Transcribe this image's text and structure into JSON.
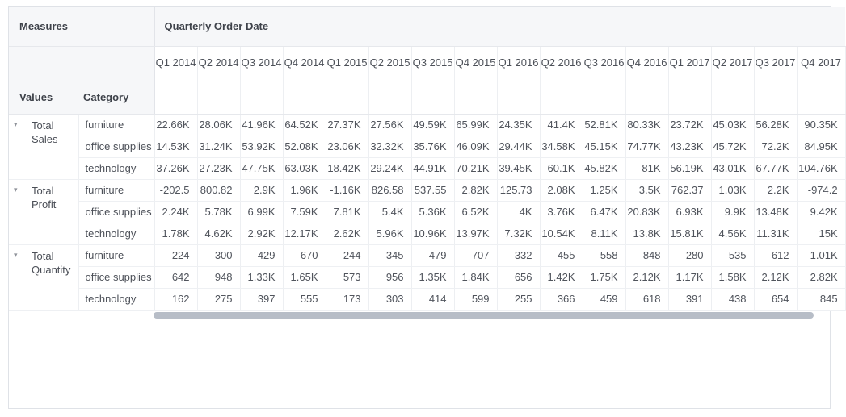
{
  "colors": {
    "header_bg": "#f6f7f9",
    "border": "#e6e8ec",
    "grid_line": "#edeff2",
    "text_header": "#3e424a",
    "text_data": "#50545c",
    "scrollbar_thumb": "#b7bdc7"
  },
  "icons": {
    "caret": "▾"
  },
  "table": {
    "corner_title": "Measures",
    "column_band_title": "Quarterly Order Date",
    "values_header": "Values",
    "category_header": "Category",
    "quarters": [
      "Q1 2014",
      "Q2 2014",
      "Q3 2014",
      "Q4 2014",
      "Q1 2015",
      "Q2 2015",
      "Q3 2015",
      "Q4 2015",
      "Q1 2016",
      "Q2 2016",
      "Q3 2016",
      "Q4 2016",
      "Q1 2017",
      "Q2 2017",
      "Q3 2017",
      "Q4 2017"
    ],
    "measures": [
      {
        "label": "Total Sales",
        "rows": [
          {
            "category": "furniture",
            "values": [
              "22.66K",
              "28.06K",
              "41.96K",
              "64.52K",
              "27.37K",
              "27.56K",
              "49.59K",
              "65.99K",
              "24.35K",
              "41.4K",
              "52.81K",
              "80.33K",
              "23.72K",
              "45.03K",
              "56.28K",
              "90.35K"
            ]
          },
          {
            "category": "office supplies",
            "values": [
              "14.53K",
              "31.24K",
              "53.92K",
              "52.08K",
              "23.06K",
              "32.32K",
              "35.76K",
              "46.09K",
              "29.44K",
              "34.58K",
              "45.15K",
              "74.77K",
              "43.23K",
              "45.72K",
              "72.2K",
              "84.95K"
            ]
          },
          {
            "category": "technology",
            "values": [
              "37.26K",
              "27.23K",
              "47.75K",
              "63.03K",
              "18.42K",
              "29.24K",
              "44.91K",
              "70.21K",
              "39.45K",
              "60.1K",
              "45.82K",
              "81K",
              "56.19K",
              "43.01K",
              "67.77K",
              "104.76K"
            ]
          }
        ]
      },
      {
        "label": "Total Profit",
        "rows": [
          {
            "category": "furniture",
            "values": [
              "-202.5",
              "800.82",
              "2.9K",
              "1.96K",
              "-1.16K",
              "826.58",
              "537.55",
              "2.82K",
              "125.73",
              "2.08K",
              "1.25K",
              "3.5K",
              "762.37",
              "1.03K",
              "2.2K",
              "-974.2"
            ]
          },
          {
            "category": "office supplies",
            "values": [
              "2.24K",
              "5.78K",
              "6.99K",
              "7.59K",
              "7.81K",
              "5.4K",
              "5.36K",
              "6.52K",
              "4K",
              "3.76K",
              "6.47K",
              "20.83K",
              "6.93K",
              "9.9K",
              "13.48K",
              "9.42K"
            ]
          },
          {
            "category": "technology",
            "values": [
              "1.78K",
              "4.62K",
              "2.92K",
              "12.17K",
              "2.62K",
              "5.96K",
              "10.96K",
              "13.97K",
              "7.32K",
              "10.54K",
              "8.11K",
              "13.8K",
              "15.81K",
              "4.56K",
              "11.31K",
              "15K"
            ]
          }
        ]
      },
      {
        "label": "Total Quantity",
        "rows": [
          {
            "category": "furniture",
            "values": [
              "224",
              "300",
              "429",
              "670",
              "244",
              "345",
              "479",
              "707",
              "332",
              "455",
              "558",
              "848",
              "280",
              "535",
              "612",
              "1.01K"
            ]
          },
          {
            "category": "office supplies",
            "values": [
              "642",
              "948",
              "1.33K",
              "1.65K",
              "573",
              "956",
              "1.35K",
              "1.84K",
              "656",
              "1.42K",
              "1.75K",
              "2.12K",
              "1.17K",
              "1.58K",
              "2.12K",
              "2.82K"
            ]
          },
          {
            "category": "technology",
            "values": [
              "162",
              "275",
              "397",
              "555",
              "173",
              "303",
              "414",
              "599",
              "255",
              "366",
              "459",
              "618",
              "391",
              "438",
              "654",
              "845"
            ]
          }
        ]
      }
    ]
  }
}
